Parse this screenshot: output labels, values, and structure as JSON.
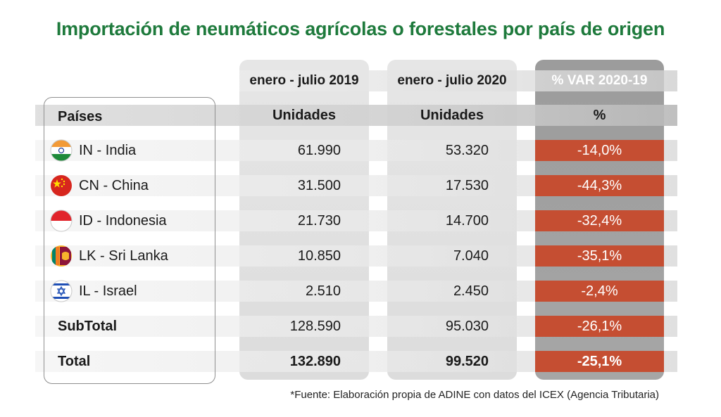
{
  "chart_data": {
    "type": "table",
    "title": "Importación de neumáticos agrícolas o forestales por país de origen",
    "periods": [
      "enero - julio 2019",
      "enero - julio 2020",
      "% VAR 2020-19"
    ],
    "columns": [
      "Países",
      "Unidades",
      "Unidades",
      "%"
    ],
    "rows": [
      {
        "country": "IN - India",
        "flag": "india-flag",
        "v2019": "61.990",
        "v2020": "53.320",
        "var": "-14,0%"
      },
      {
        "country": "CN - China",
        "flag": "china-flag",
        "v2019": "31.500",
        "v2020": "17.530",
        "var": "-44,3%"
      },
      {
        "country": "ID - Indonesia",
        "flag": "indonesia-flag",
        "v2019": "21.730",
        "v2020": "14.700",
        "var": "-32,4%"
      },
      {
        "country": "LK - Sri Lanka",
        "flag": "sri-lanka-flag",
        "v2019": "10.850",
        "v2020": "7.040",
        "var": "-35,1%"
      },
      {
        "country": "IL - Israel",
        "flag": "israel-flag",
        "v2019": "2.510",
        "v2020": "2.450",
        "var": "-2,4%"
      }
    ],
    "subtotal": {
      "label": "SubTotal",
      "v2019": "128.590",
      "v2020": "95.030",
      "var": "-26,1%"
    },
    "total": {
      "label": "Total",
      "v2019": "132.890",
      "v2020": "99.520",
      "var": "-25,1%"
    },
    "source": "*Fuente: Elaboración propia de ADINE con datos del ICEX (Agencia Tributaria)"
  },
  "colors": {
    "title": "#1e7a3c",
    "negative_cell": "#c54e32",
    "var_column": "#9c9c9c"
  }
}
